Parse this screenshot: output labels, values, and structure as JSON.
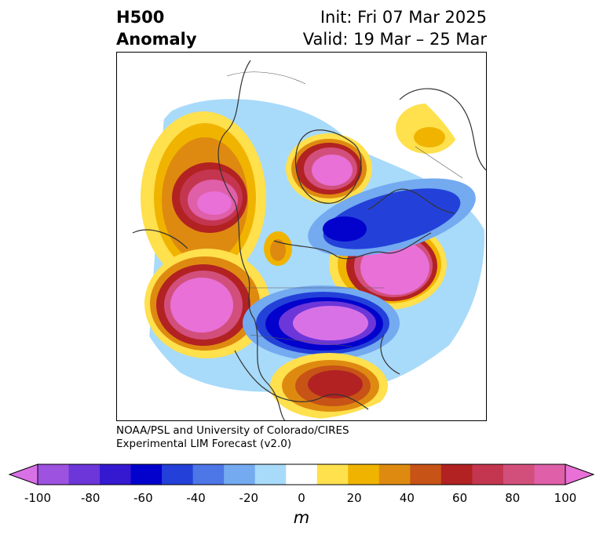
{
  "title": {
    "left_line1": "H500",
    "left_line2": "Anomaly",
    "right_line1": "Init: Fri 07 Mar 2025",
    "right_line2": "Valid: 19 Mar – 25 Mar"
  },
  "credit": {
    "line1": "NOAA/PSL and University of Colorado/CIRES",
    "line2": "Experimental LIM Forecast (v2.0)"
  },
  "colorbar": {
    "unit": "m",
    "tick_labels": [
      "-100",
      "-80",
      "-60",
      "-40",
      "-20",
      "0",
      "20",
      "40",
      "60",
      "80",
      "100"
    ],
    "levels": [
      -100,
      -90,
      -80,
      -70,
      -60,
      -50,
      -40,
      -30,
      -20,
      -10,
      10,
      20,
      30,
      40,
      50,
      60,
      70,
      80,
      90,
      100
    ],
    "colors": [
      "#d971e6",
      "#9e52e0",
      "#6c36d9",
      "#3519d1",
      "#0202cc",
      "#2341d9",
      "#4d76e6",
      "#73aaf0",
      "#a8dafa",
      "#ffffff",
      "#ffe04d",
      "#f0b400",
      "#de8a10",
      "#c75317",
      "#b22222",
      "#c4364f",
      "#d24f7c",
      "#df5fa8",
      "#e870d6"
    ]
  }
}
